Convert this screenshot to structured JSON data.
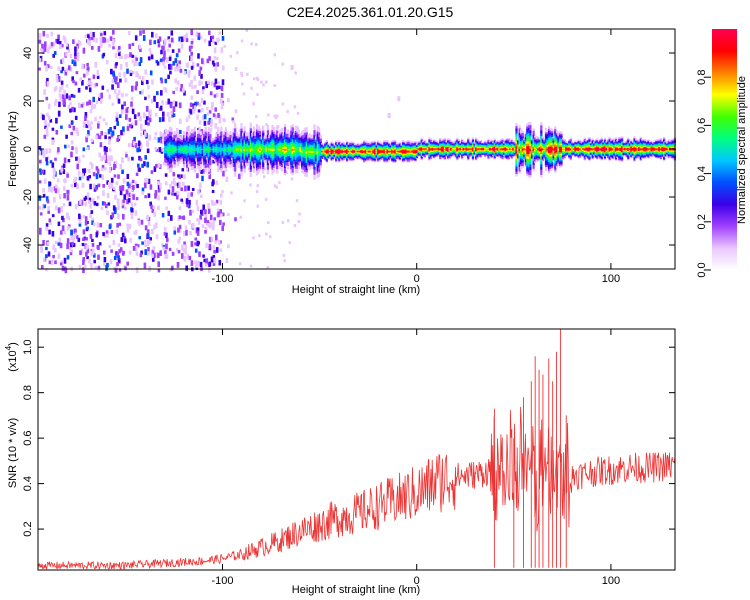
{
  "title": "C2E4.2025.361.01.20.G15",
  "chart_data": [
    {
      "type": "heatmap",
      "xlabel": "Height of straight line (km)",
      "ylabel": "Frequency (Hz)",
      "xlim": [
        -195,
        133
      ],
      "ylim": [
        -50,
        50
      ],
      "xticks": [
        -100,
        0,
        100
      ],
      "yticks": [
        -40,
        -20,
        0,
        20,
        40
      ],
      "colorbar": {
        "label": "Normalized spectral amplitude",
        "range": [
          0,
          1
        ],
        "ticks": [
          "0.0",
          "0.2",
          "0.4",
          "0.6",
          "0.8"
        ],
        "colors": [
          "#ffffff",
          "#e9c6ff",
          "#a040ff",
          "#3a00e8",
          "#0050ff",
          "#00c8ff",
          "#00ff80",
          "#40ff00",
          "#ffff00",
          "#ff8000",
          "#ff0000",
          "#ff0050"
        ]
      },
      "description_segments": [
        {
          "x_from": -195,
          "x_to": -100,
          "pattern": "broadband scatter"
        },
        {
          "x_from": -100,
          "x_to": 133,
          "pattern": "narrow band near 0 Hz"
        }
      ]
    },
    {
      "type": "line",
      "xlabel": "Height of straight line (km)",
      "ylabel": "SNR (10 * v/v)",
      "yscale_label": "(x10",
      "yscale_exp": "4",
      "yscale_close": ")",
      "xlim": [
        -195,
        133
      ],
      "ylim": [
        0.02,
        1.08
      ],
      "xticks": [
        -100,
        0,
        100
      ],
      "yticks": [
        "0.2",
        "0.4",
        "0.6",
        "0.8",
        "1.0"
      ],
      "color": "#ee3333",
      "series": [
        {
          "name": "SNR",
          "x": [
            -195,
            -170,
            -150,
            -130,
            -110,
            -100,
            -90,
            -80,
            -70,
            -60,
            -50,
            -40,
            -30,
            -20,
            -10,
            0,
            5,
            10,
            20,
            30,
            35,
            40,
            45,
            50,
            55,
            60,
            65,
            70,
            75,
            80,
            85,
            90,
            100,
            110,
            120,
            133
          ],
          "y": [
            0.04,
            0.04,
            0.04,
            0.05,
            0.06,
            0.07,
            0.09,
            0.12,
            0.15,
            0.19,
            0.22,
            0.25,
            0.27,
            0.3,
            0.33,
            0.36,
            0.38,
            0.41,
            0.43,
            0.44,
            0.45,
            0.47,
            0.46,
            0.46,
            0.45,
            0.44,
            0.44,
            0.45,
            0.44,
            0.44,
            0.44,
            0.45,
            0.46,
            0.47,
            0.47,
            0.48
          ]
        }
      ],
      "spikes": [
        {
          "x": 40,
          "y": 0.73
        },
        {
          "x": 50,
          "y": 0.6
        },
        {
          "x": 55,
          "y": 0.78
        },
        {
          "x": 59,
          "y": 0.85
        },
        {
          "x": 61,
          "y": 0.96
        },
        {
          "x": 63,
          "y": 0.9
        },
        {
          "x": 65,
          "y": 0.88
        },
        {
          "x": 68,
          "y": 0.95
        },
        {
          "x": 70,
          "y": 0.85
        },
        {
          "x": 72,
          "y": 0.98
        },
        {
          "x": 74,
          "y": 1.08
        },
        {
          "x": 77,
          "y": 0.7
        }
      ]
    }
  ]
}
